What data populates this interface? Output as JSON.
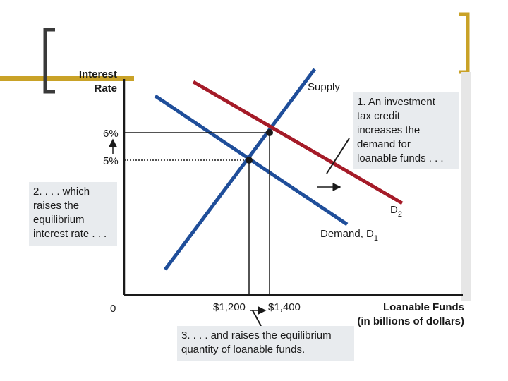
{
  "axes": {
    "y_label_line1": "Interest",
    "y_label_line2": "Rate",
    "x_label_line1": "Loanable Funds",
    "x_label_line2": "(in billions of dollars)",
    "origin": "0"
  },
  "curves": {
    "supply": "Supply",
    "demand_new": "D",
    "demand_new_sub": "2",
    "demand_old": "Demand, D",
    "demand_old_sub": "1"
  },
  "ticks": {
    "rate_high": "6%",
    "rate_low": "5%",
    "qty_low": "$1,200",
    "qty_high": "$1,400"
  },
  "notes": {
    "note1_lines": [
      "1. An investment",
      "tax credit",
      "increases the",
      "demand for",
      "loanable funds . . ."
    ],
    "note2_lines": [
      "2. . . . which",
      "raises the",
      "equilibrium",
      "interest rate . . ."
    ],
    "note3_lines": [
      "3. . . . and raises the equilibrium",
      "quantity of loanable funds."
    ]
  },
  "colors": {
    "supply": "#1f4e9a",
    "demand_old": "#1f4e9a",
    "demand_new": "#a51b28",
    "accent_gold": "#c9a227",
    "bracket": "#3a3a3a",
    "note_bg": "#e8ebee"
  },
  "chart_data": {
    "type": "line",
    "x_unit": "billions of dollars",
    "y_unit": "percent",
    "series": [
      {
        "name": "Supply"
      },
      {
        "name": "Demand, D1"
      },
      {
        "name": "D2"
      }
    ],
    "equilibria": [
      {
        "x": 1200,
        "y": 5
      },
      {
        "x": 1400,
        "y": 6
      }
    ]
  }
}
